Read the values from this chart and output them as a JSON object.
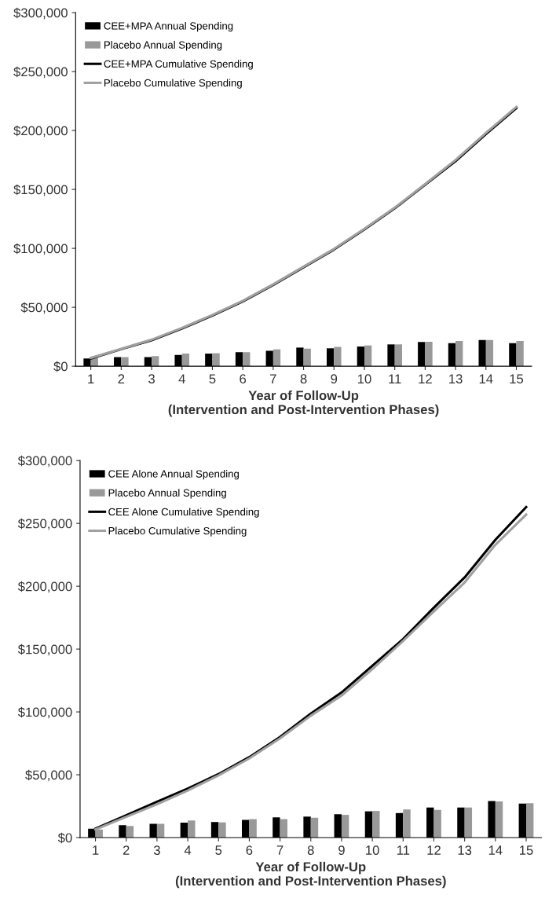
{
  "chart_data": [
    {
      "type": "bar",
      "xlabel": "Year of Follow-Up\n(Intervention and Post-Intervention Phases)",
      "categories": [
        "1",
        "2",
        "3",
        "4",
        "5",
        "6",
        "7",
        "8",
        "9",
        "10",
        "11",
        "12",
        "13",
        "14",
        "15"
      ],
      "ylim": [
        0,
        300000
      ],
      "yticks": [
        {
          "value": 0,
          "label": "$0"
        },
        {
          "value": 50000,
          "label": "$50,000"
        },
        {
          "value": 100000,
          "label": "$100,000"
        },
        {
          "value": 150000,
          "label": "$150,000"
        },
        {
          "value": 200000,
          "label": "$200,000"
        },
        {
          "value": 250000,
          "label": "$250,000"
        },
        {
          "value": 300000,
          "label": "$300,000"
        }
      ],
      "grid": false,
      "legend": "top left",
      "series": [
        {
          "name": "CEE+MPA Annual Spending",
          "color": "#000000",
          "values": [
            6500,
            7700,
            7700,
            9500,
            10700,
            11900,
            13100,
            15800,
            15200,
            16700,
            18500,
            20500,
            19600,
            22300,
            19600
          ]
        },
        {
          "name": "Placebo Annual Spending",
          "color": "#999999",
          "values": [
            7000,
            7700,
            8600,
            10700,
            11000,
            11900,
            14300,
            14900,
            16400,
            17600,
            18500,
            20800,
            21400,
            22300,
            21400
          ]
        },
        {
          "name": "CEE+MPA Cumulative Spending",
          "type": "line",
          "color": "#000000",
          "values": [
            6500,
            14500,
            22000,
            32000,
            43000,
            55000,
            69000,
            84000,
            99000,
            116000,
            134000,
            154000,
            174000,
            197000,
            219000
          ]
        },
        {
          "name": "Placebo Cumulative Spending",
          "type": "line",
          "color": "#a0a0a0",
          "values": [
            7000,
            14700,
            22500,
            32500,
            43500,
            55500,
            69500,
            84500,
            99500,
            116500,
            134500,
            154500,
            175000,
            198000,
            220000
          ]
        }
      ]
    },
    {
      "type": "bar",
      "xlabel": "Year of Follow-Up\n(Intervention and Post-Intervention Phases)",
      "categories": [
        "1",
        "2",
        "3",
        "4",
        "5",
        "6",
        "7",
        "8",
        "9",
        "10",
        "11",
        "12",
        "13",
        "14",
        "15"
      ],
      "ylim": [
        0,
        300000
      ],
      "yticks": [
        {
          "value": 0,
          "label": "$0"
        },
        {
          "value": 50000,
          "label": "$50,000"
        },
        {
          "value": 100000,
          "label": "$100,000"
        },
        {
          "value": 150000,
          "label": "$150,000"
        },
        {
          "value": 200000,
          "label": "$200,000"
        },
        {
          "value": 250000,
          "label": "$250,000"
        },
        {
          "value": 300000,
          "label": "$300,000"
        }
      ],
      "grid": false,
      "legend": "top left",
      "series": [
        {
          "name": "CEE Alone Annual Spending",
          "color": "#000000",
          "values": [
            7100,
            9900,
            11000,
            11900,
            12400,
            14100,
            16100,
            16700,
            18600,
            20900,
            19500,
            24000,
            24000,
            29100,
            27100
          ]
        },
        {
          "name": "Placebo Annual Spending",
          "color": "#999999",
          "values": [
            6500,
            9300,
            11000,
            13600,
            12100,
            14700,
            14700,
            15800,
            18100,
            21200,
            22300,
            22000,
            24000,
            28800,
            27400
          ]
        },
        {
          "name": "CEE Alone Cumulative Spending",
          "type": "line",
          "color": "#000000",
          "values": [
            7100,
            17800,
            28500,
            39000,
            50500,
            64000,
            80000,
            98600,
            115500,
            136700,
            158000,
            183000,
            207000,
            237000,
            263000
          ]
        },
        {
          "name": "Placebo Cumulative Spending",
          "type": "line",
          "color": "#a0a0a0",
          "values": [
            6500,
            16500,
            26500,
            37500,
            49500,
            63000,
            79000,
            97000,
            113000,
            134000,
            156500,
            180000,
            203000,
            233000,
            257000
          ]
        }
      ]
    }
  ]
}
